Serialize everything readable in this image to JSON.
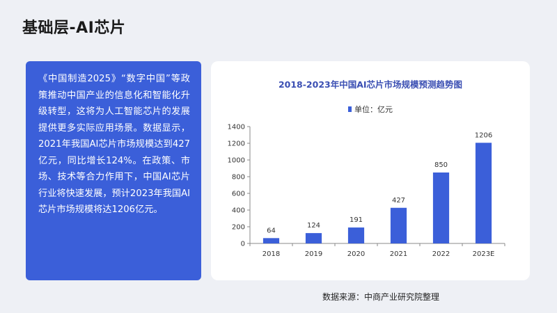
{
  "page": {
    "title": "基础层-AI芯片",
    "body_text": "《中国制造2025》“数字中国”等政策推动中国产业的信息化和智能化升级转型，这将为人工智能芯片的发展提供更多实际应用场景。数据显示，2021年我国AI芯片市场规模达到427亿元，同比增长124%。在政策、市场、技术等合力作用下，中国AI芯片行业将快速发展，预计2023年我国AI芯片市场规模将达1206亿元。",
    "source": "数据来源：中商产业研究院整理"
  },
  "colors": {
    "accent": "#3b5fd9",
    "bar": "#3b5fd9",
    "title": "#3b4fb3"
  },
  "chart_data": {
    "type": "bar",
    "title": "2018-2023年中国AI芯片市场规模预测趋势图",
    "legend": "单位：亿元",
    "legend_position": "top-center",
    "categories": [
      "2018",
      "2019",
      "2020",
      "2021",
      "2022",
      "2023E"
    ],
    "values": [
      64,
      124,
      191,
      427,
      850,
      1206
    ],
    "data_labels": [
      "64",
      "124",
      "191",
      "427",
      "850",
      "1206"
    ],
    "ylim": [
      0,
      1400
    ],
    "yticks": [
      "0",
      "200",
      "400",
      "600",
      "800",
      "1000",
      "1200",
      "1400"
    ],
    "grid": false
  }
}
